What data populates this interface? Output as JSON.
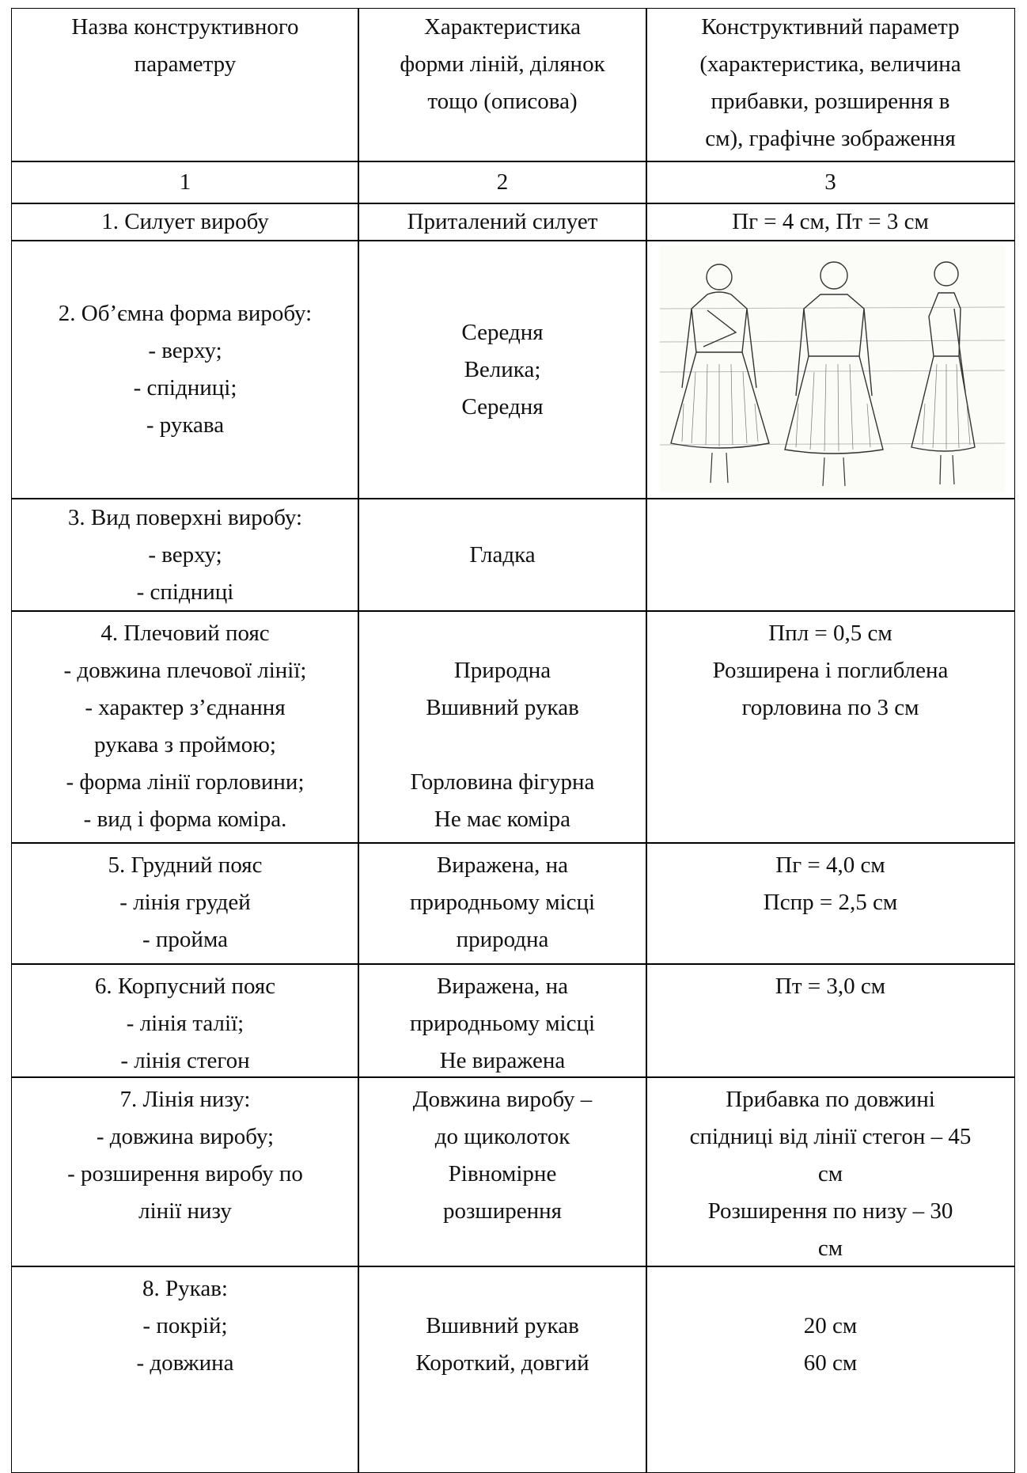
{
  "table": {
    "header": [
      [
        "Назва конструктивного",
        "параметру"
      ],
      [
        "Характеристика",
        "форми ліній, ділянок",
        "тощо (описова)"
      ],
      [
        "Конструктивний параметр",
        "(характеристика, величина",
        "прибавки, розширення в",
        "см), графічне зображення"
      ]
    ],
    "column_numbers": [
      1,
      2,
      3
    ],
    "rows": [
      [
        [
          "1. Силует виробу"
        ],
        [
          "Приталений силует"
        ],
        [
          "Пг = 4 см, Пт = 3 см"
        ]
      ],
      [
        [
          "2. Об’ємна форма виробу:",
          "- верху;",
          "- спідниці;",
          "- рукава"
        ],
        [
          "Середня",
          "Велика;",
          "Середня"
        ],
        []
      ],
      [
        [
          "3. Вид поверхні виробу:",
          "- верху;",
          "- спідниці"
        ],
        [
          "Гладка"
        ],
        []
      ],
      [
        [
          "4. Плечовий пояс",
          "- довжина плечової лінії;",
          "- характер з’єднання",
          "рукава з проймою;",
          "- форма лінії горловини;",
          "- вид і форма коміра."
        ],
        [
          "Природна",
          "Вшивний рукав",
          "Горловина фігурна",
          "Не має коміра"
        ],
        [
          "Ппл = 0,5 см",
          "Розширена і поглиблена",
          "горловина по 3 см"
        ]
      ],
      [
        [
          "5. Грудний пояс",
          "- лінія грудей",
          "- пройма"
        ],
        [
          "Виражена, на",
          "природньому місці",
          "природна"
        ],
        [
          "Пг = 4,0 см",
          "Пспр = 2,5 см"
        ]
      ],
      [
        [
          "6. Корпусний пояс",
          "- лінія талії;",
          "- лінія стегон"
        ],
        [
          "Виражена, на",
          "природньому місці",
          "Не виражена"
        ],
        [
          "Пт = 3,0 см"
        ]
      ],
      [
        [
          "7. Лінія низу:",
          "- довжина виробу;",
          "- розширення виробу по",
          "лінії низу"
        ],
        [
          "Довжина виробу –",
          "до щиколоток",
          "Рівномірне",
          "розширення"
        ],
        [
          "Прибавка по довжині",
          "спідниці від лінії стегон – 45",
          "см",
          "Розширення по низу – 30",
          "см"
        ]
      ],
      [
        [
          "8. Рукав:",
          "- покрій;",
          "- довжина"
        ],
        [
          "Вшивний рукав",
          "Короткий, довгий"
        ],
        [
          "20 см",
          "60 см"
        ]
      ]
    ]
  }
}
